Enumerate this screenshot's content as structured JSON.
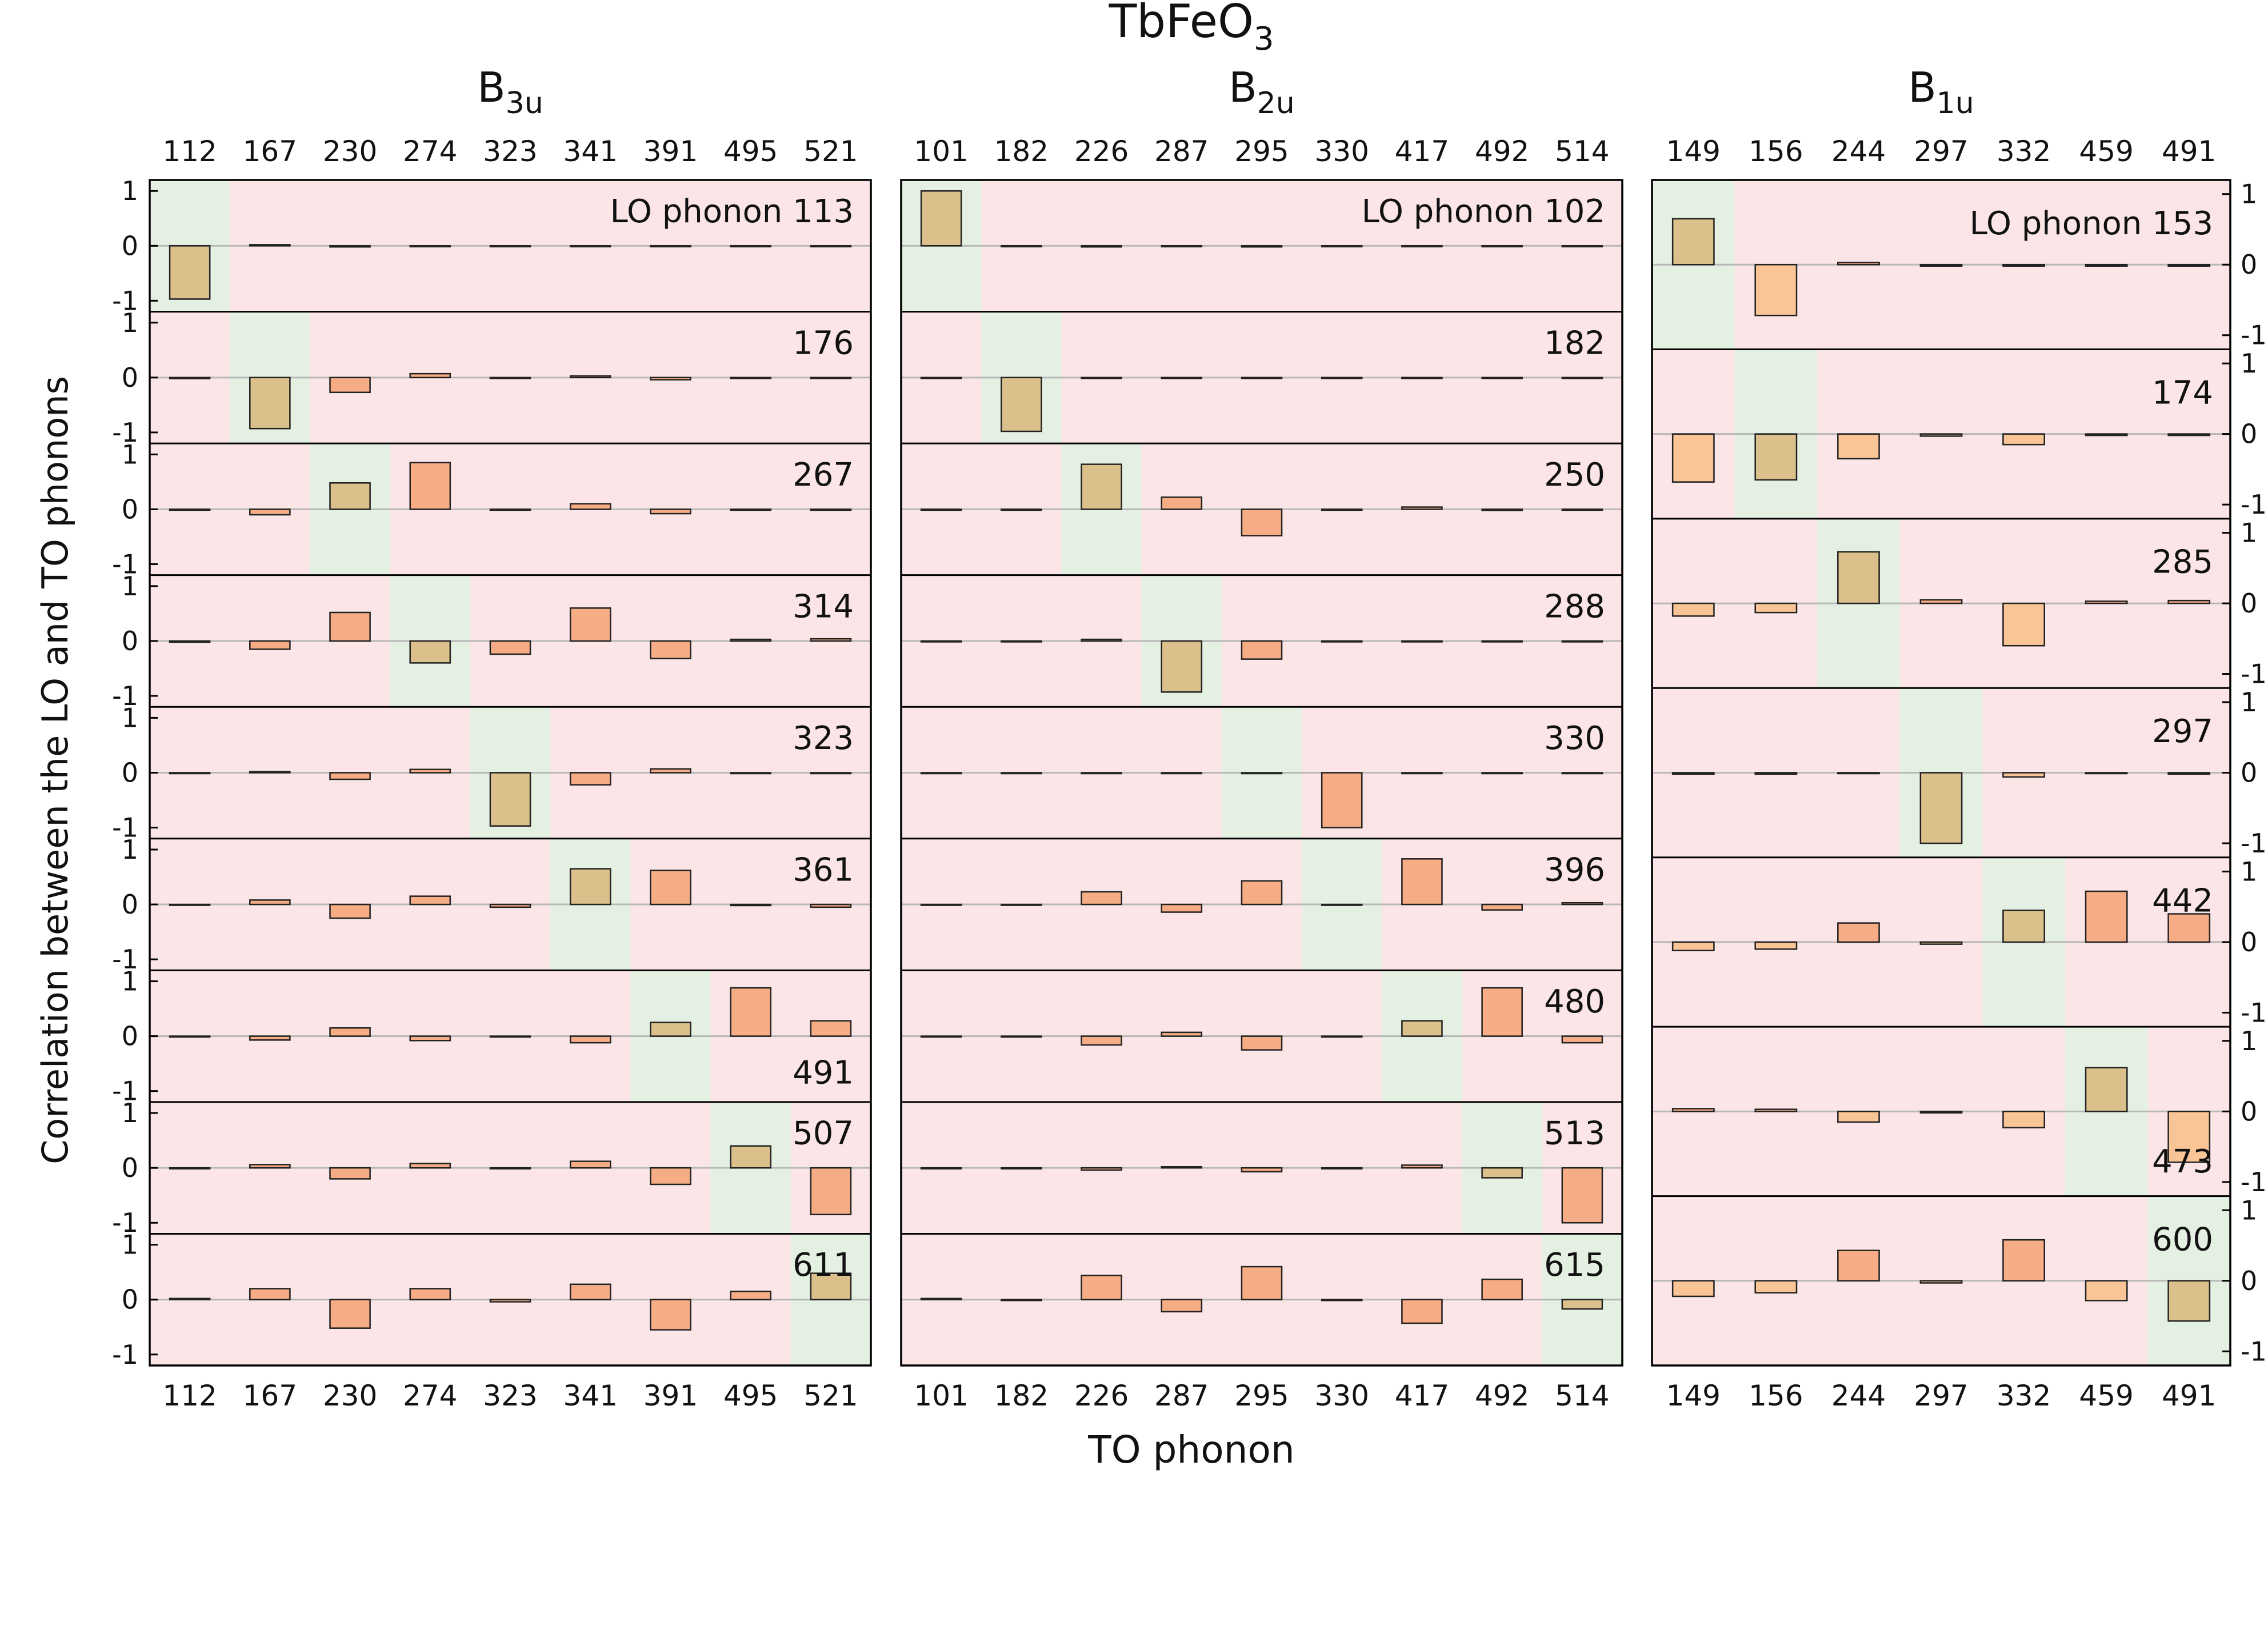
{
  "chart_data": {
    "type": "bar",
    "title": {
      "base": "TbFeO",
      "sub": "3"
    },
    "xlabel": "TO phonon",
    "ylabel": "Correlation between the LO and TO phonons",
    "ylim": [
      -1.2,
      1.2
    ],
    "y_ticks": [
      "1",
      "0",
      "-1"
    ],
    "colors": {
      "background": "#fbe5e6",
      "highlight": "#e4f1e2",
      "bar_diagonal": "#dcc08c",
      "bar_positive": "#f6ad86",
      "bar_negative_light": "#f9c596",
      "zero_line": "#b8b8b8",
      "frame": "#000000"
    },
    "panels": [
      {
        "symmetry": {
          "base": "B",
          "sub": "3u"
        },
        "categories": [
          "112",
          "167",
          "230",
          "274",
          "323",
          "341",
          "391",
          "495",
          "521"
        ],
        "rows": [
          {
            "label": "LO phonon 113",
            "values": [
              -0.97,
              0.02,
              -0.02,
              0,
              0,
              0,
              0,
              0,
              0
            ]
          },
          {
            "label": "176",
            "values": [
              -0.02,
              -0.93,
              -0.27,
              0.07,
              0,
              0.03,
              -0.04,
              0,
              0
            ]
          },
          {
            "label": "267",
            "values": [
              0,
              -0.1,
              0.48,
              0.85,
              0,
              0.1,
              -0.08,
              0,
              0
            ]
          },
          {
            "label": "314",
            "values": [
              -0.02,
              -0.15,
              0.52,
              -0.4,
              -0.24,
              0.6,
              -0.32,
              0.03,
              0.04
            ]
          },
          {
            "label": "323",
            "values": [
              0,
              0.02,
              -0.12,
              0.06,
              -0.97,
              -0.22,
              0.07,
              0,
              0
            ]
          },
          {
            "label": "361",
            "values": [
              0,
              0.08,
              -0.25,
              0.15,
              -0.05,
              0.65,
              0.62,
              -0.02,
              -0.05
            ]
          },
          {
            "label": "491",
            "values": [
              0,
              -0.07,
              0.15,
              -0.08,
              0,
              -0.12,
              0.25,
              0.88,
              0.28
            ]
          },
          {
            "label": "507",
            "values": [
              0,
              0.06,
              -0.2,
              0.08,
              0,
              0.12,
              -0.3,
              0.4,
              -0.85
            ]
          },
          {
            "label": "611",
            "values": [
              0.02,
              0.2,
              -0.52,
              0.2,
              -0.04,
              0.28,
              -0.55,
              0.15,
              0.48
            ]
          }
        ]
      },
      {
        "symmetry": {
          "base": "B",
          "sub": "2u"
        },
        "categories": [
          "101",
          "182",
          "226",
          "287",
          "295",
          "330",
          "417",
          "492",
          "514"
        ],
        "rows": [
          {
            "label": "LO phonon 102",
            "values": [
              1.0,
              0,
              -0.02,
              0,
              -0.02,
              0,
              0,
              0,
              0
            ]
          },
          {
            "label": "182",
            "values": [
              0,
              -0.98,
              0,
              0,
              0,
              0,
              0,
              0,
              0
            ]
          },
          {
            "label": "250",
            "values": [
              0,
              0,
              0.82,
              0.22,
              -0.48,
              0,
              0.04,
              -0.02,
              0
            ]
          },
          {
            "label": "288",
            "values": [
              0,
              0,
              0.03,
              -0.93,
              -0.33,
              0,
              0,
              0,
              0
            ]
          },
          {
            "label": "330",
            "values": [
              0,
              0,
              0,
              0,
              0,
              -1.0,
              0,
              0,
              0
            ]
          },
          {
            "label": "396",
            "values": [
              0,
              0,
              0.23,
              -0.14,
              0.43,
              0,
              0.83,
              -0.1,
              0.03
            ]
          },
          {
            "label": "480",
            "values": [
              0,
              0,
              -0.16,
              0.07,
              -0.25,
              0,
              0.28,
              0.88,
              -0.12
            ]
          },
          {
            "label": "513",
            "values": [
              0,
              0,
              -0.04,
              0.02,
              -0.07,
              0,
              0.05,
              -0.18,
              -1.0
            ]
          },
          {
            "label": "615",
            "values": [
              0.02,
              0,
              0.44,
              -0.22,
              0.6,
              0,
              -0.43,
              0.37,
              -0.17
            ]
          }
        ]
      },
      {
        "symmetry": {
          "base": "B",
          "sub": "1u"
        },
        "categories": [
          "149",
          "156",
          "244",
          "297",
          "332",
          "459",
          "491"
        ],
        "rows": [
          {
            "label": "LO phonon 153",
            "values": [
              0.65,
              -0.72,
              0.03,
              -0.02,
              -0.02,
              -0.02,
              -0.02
            ]
          },
          {
            "label": "174",
            "values": [
              -0.68,
              -0.65,
              -0.35,
              -0.03,
              -0.15,
              -0.02,
              -0.02
            ]
          },
          {
            "label": "285",
            "values": [
              -0.18,
              -0.13,
              0.73,
              0.05,
              -0.6,
              0.03,
              0.04
            ]
          },
          {
            "label": "297",
            "values": [
              -0.02,
              -0.02,
              0,
              -1.0,
              -0.06,
              0,
              -0.02
            ]
          },
          {
            "label": "442",
            "values": [
              -0.12,
              -0.1,
              0.27,
              -0.03,
              0.45,
              0.72,
              0.4
            ]
          },
          {
            "label": "473",
            "values": [
              0.04,
              0.03,
              -0.15,
              -0.02,
              -0.23,
              0.62,
              -0.72
            ]
          },
          {
            "label": "600",
            "values": [
              -0.22,
              -0.17,
              0.43,
              -0.03,
              0.58,
              -0.28,
              -0.57
            ]
          }
        ]
      }
    ]
  }
}
